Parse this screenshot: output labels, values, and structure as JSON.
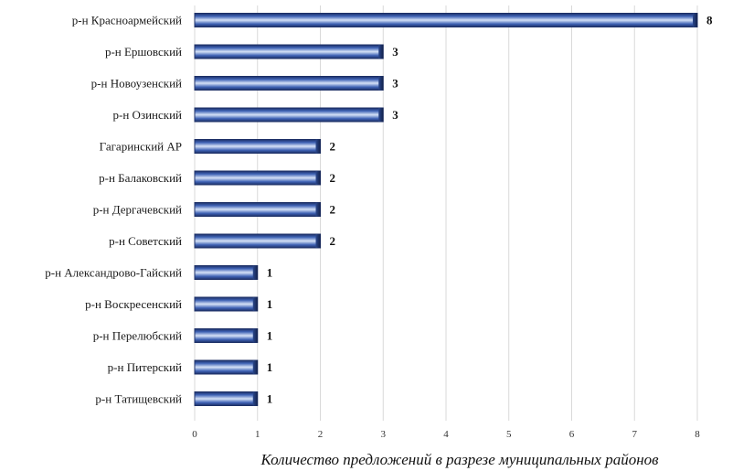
{
  "chart_data": {
    "type": "bar",
    "orientation": "horizontal",
    "categories": [
      "р-н Красноармейский",
      "р-н Ершовский",
      "р-н Новоузенский",
      "р-н Озинский",
      "Гагаринский АР",
      "р-н Балаковский",
      "р-н Дергачевский",
      "р-н Советский",
      "р-н Александрово-Гайский",
      "р-н Воскресенский",
      "р-н Перелюбский",
      "р-н Питерский",
      "р-н Татищевский"
    ],
    "values": [
      8,
      3,
      3,
      3,
      2,
      2,
      2,
      2,
      1,
      1,
      1,
      1,
      1
    ],
    "xlim": [
      0,
      8
    ],
    "xticks": [
      "0",
      "1",
      "2",
      "3",
      "4",
      "5",
      "6",
      "7",
      "8"
    ],
    "xlabel": "Количество предложений в разрезе муниципальных районов",
    "ylabel": "",
    "title": "",
    "grid": true,
    "data_labels": true,
    "colors": {
      "bar_dark": "#1c2f66",
      "bar_mid": "#3f63b5",
      "bar_light": "#c9d8f3",
      "grid": "#d9d9d9"
    }
  }
}
